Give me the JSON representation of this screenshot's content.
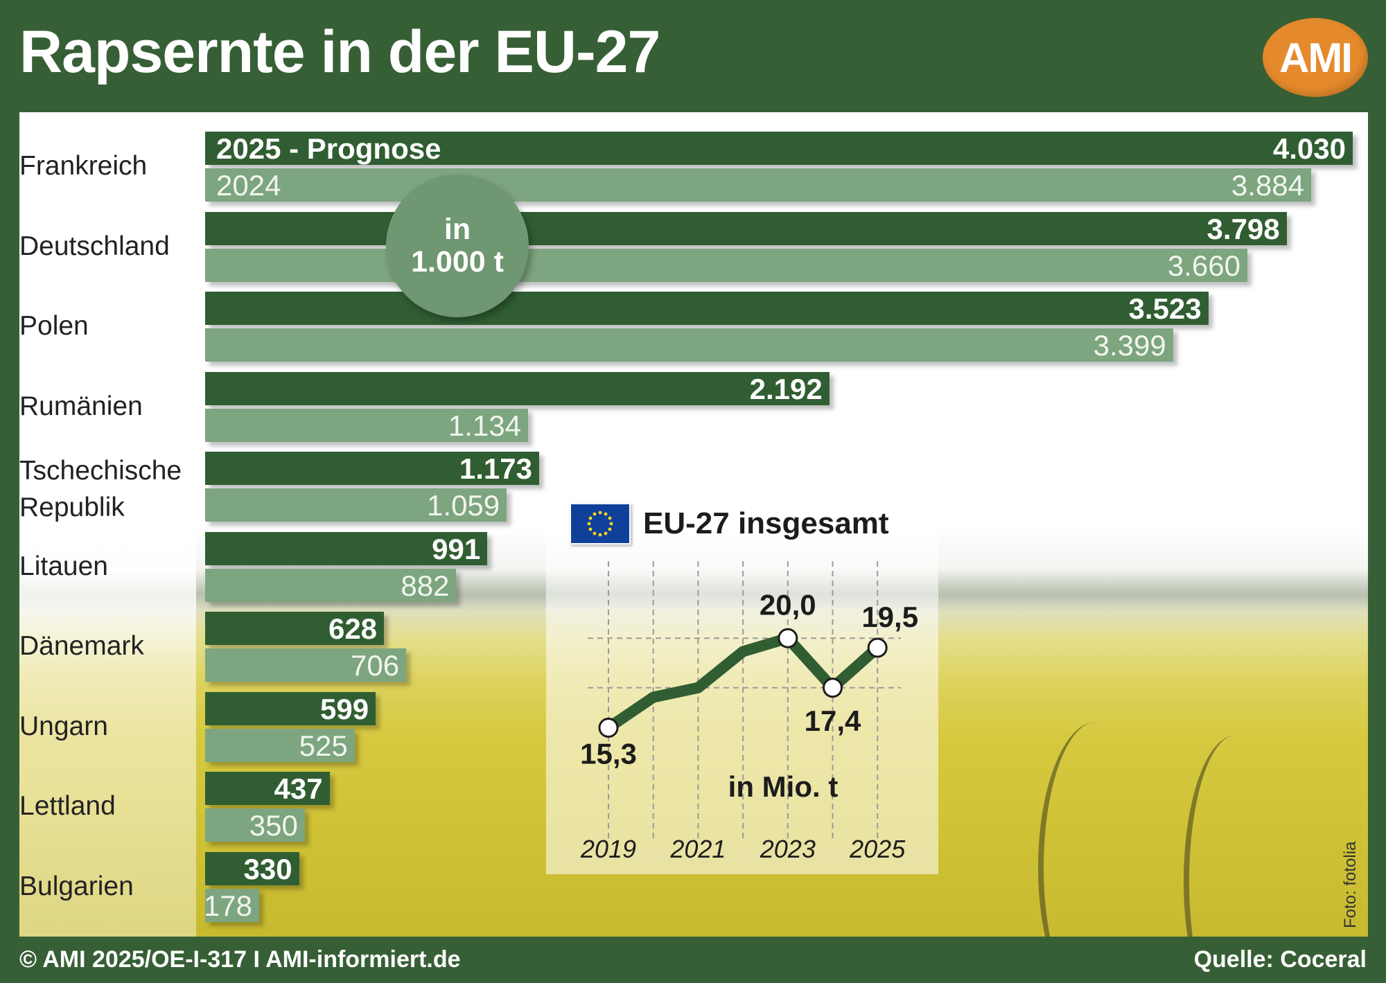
{
  "header": {
    "title": "Rapsernte in der EU-27",
    "logo_text": "AMI"
  },
  "legend": {
    "current_label": "2025 - Prognose",
    "previous_label": "2024"
  },
  "unit_badge": {
    "line1": "in",
    "line2": "1.000 t"
  },
  "inset": {
    "title": "EU-27 insgesamt",
    "unit": "in Mio. t"
  },
  "footer": {
    "left": "© AMI 2025/OE-I-317 I AMI-informiert.de",
    "right": "Quelle: Coceral",
    "photo_credit": "Foto: fotolia"
  },
  "colors": {
    "header_green": "#375f36",
    "bar_current": "#305e32",
    "bar_previous": "#7da57f",
    "logo_orange": "#e58a2c"
  },
  "chart_data": [
    {
      "type": "bar",
      "orientation": "horizontal",
      "categories": [
        "Frankreich",
        "Deutschland",
        "Polen",
        "Rumänien",
        "Tschechische Republik",
        "Litauen",
        "Dänemark",
        "Ungarn",
        "Lettland",
        "Bulgarien"
      ],
      "series": [
        {
          "name": "2025 - Prognose",
          "values": [
            4030,
            3798,
            3523,
            2192,
            1173,
            991,
            628,
            599,
            437,
            330
          ],
          "labels": [
            "4.030",
            "3.798",
            "3.523",
            "2.192",
            "1.173",
            "991",
            "628",
            "599",
            "437",
            "330"
          ]
        },
        {
          "name": "2024",
          "values": [
            3884,
            3660,
            3399,
            1134,
            1059,
            882,
            706,
            525,
            350,
            178
          ],
          "labels": [
            "3.884",
            "3.660",
            "3.399",
            "1.134",
            "1.059",
            "882",
            "706",
            "525",
            "350",
            "178"
          ]
        }
      ],
      "unit": "in 1.000 t",
      "xlim": [
        0,
        4030
      ]
    },
    {
      "type": "line",
      "title": "EU-27 insgesamt",
      "unit": "in Mio. t",
      "x": [
        2019,
        2020,
        2021,
        2022,
        2023,
        2024,
        2025
      ],
      "y": [
        15.3,
        16.9,
        17.4,
        19.3,
        20.0,
        17.4,
        19.5
      ],
      "x_tick_labels": [
        "2019",
        "2021",
        "2023",
        "2025"
      ],
      "labeled_points": [
        {
          "x": 2019,
          "label": "15,3"
        },
        {
          "x": 2023,
          "label": "20,0"
        },
        {
          "x": 2024,
          "label": "17,4"
        },
        {
          "x": 2025,
          "label": "19,5"
        }
      ],
      "ylim": [
        13.5,
        21.5
      ],
      "grid": true
    }
  ]
}
